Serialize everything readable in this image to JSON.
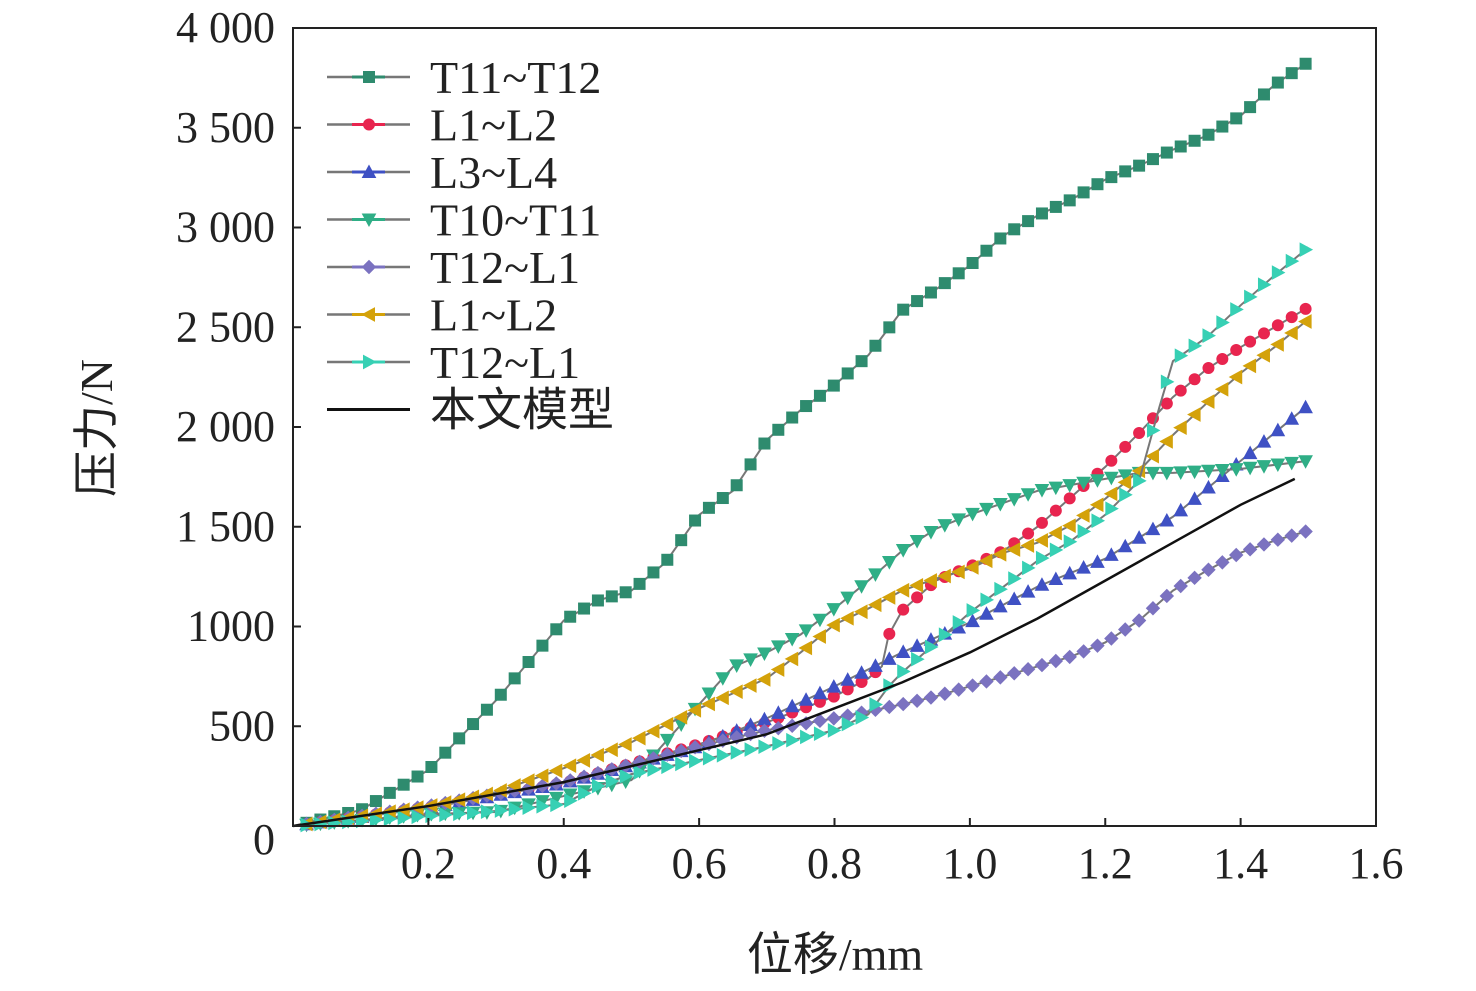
{
  "chart_data": {
    "type": "line",
    "title": "",
    "xlabel": "位移/mm",
    "ylabel": "压力/N",
    "xlim": [
      0,
      1.6
    ],
    "ylim": [
      0,
      4000
    ],
    "xticks": [
      {
        "v": 0.2,
        "label": "0.2"
      },
      {
        "v": 0.4,
        "label": "0.4"
      },
      {
        "v": 0.6,
        "label": "0.6"
      },
      {
        "v": 0.8,
        "label": "0.8"
      },
      {
        "v": 1.0,
        "label": "1.0"
      },
      {
        "v": 1.2,
        "label": "1.2"
      },
      {
        "v": 1.4,
        "label": "1.4"
      },
      {
        "v": 1.6,
        "label": "1.6"
      }
    ],
    "yticks": [
      {
        "v": 0,
        "label": "0"
      },
      {
        "v": 500,
        "label": "500"
      },
      {
        "v": 1000,
        "label": "1000"
      },
      {
        "v": 1500,
        "label": "1 500"
      },
      {
        "v": 2000,
        "label": "2 000"
      },
      {
        "v": 2500,
        "label": "2 500"
      },
      {
        "v": 3000,
        "label": "3 000"
      },
      {
        "v": 3500,
        "label": "3 500"
      },
      {
        "v": 4000,
        "label": "4 000"
      }
    ],
    "grid": false,
    "legend_position": "top-left",
    "series": [
      {
        "name": "T11~T12",
        "color": "#2e8b6e",
        "marker": "square",
        "x": [
          0,
          0.1,
          0.2,
          0.3,
          0.4,
          0.45,
          0.5,
          0.55,
          0.6,
          0.65,
          0.7,
          0.75,
          0.8,
          0.85,
          0.9,
          0.95,
          1.0,
          1.05,
          1.1,
          1.15,
          1.2,
          1.25,
          1.3,
          1.35,
          1.4,
          1.45,
          1.5
        ],
        "y": [
          0,
          80,
          280,
          630,
          1030,
          1130,
          1180,
          1320,
          1560,
          1680,
          1935,
          2085,
          2210,
          2360,
          2585,
          2690,
          2810,
          2960,
          3060,
          3140,
          3240,
          3310,
          3390,
          3460,
          3560,
          3715,
          3830
        ]
      },
      {
        "name": "L1~L2",
        "color": "#e8254f",
        "marker": "circle",
        "x": [
          0,
          0.2,
          0.4,
          0.6,
          0.7,
          0.8,
          0.85,
          0.87,
          0.88,
          0.9,
          0.95,
          1.0,
          1.05,
          1.1,
          1.15,
          1.2,
          1.25,
          1.3,
          1.35,
          1.4,
          1.45,
          1.5
        ],
        "y": [
          0,
          95,
          215,
          410,
          520,
          650,
          740,
          800,
          957,
          1080,
          1230,
          1300,
          1380,
          1500,
          1650,
          1800,
          1970,
          2150,
          2290,
          2400,
          2500,
          2600
        ]
      },
      {
        "name": "L3~L4",
        "color": "#3f51c4",
        "marker": "triangle-up",
        "x": [
          0,
          0.2,
          0.4,
          0.6,
          0.7,
          0.8,
          0.9,
          1.0,
          1.1,
          1.2,
          1.3,
          1.4,
          1.5
        ],
        "y": [
          0,
          90,
          215,
          400,
          540,
          700,
          870,
          1020,
          1200,
          1340,
          1550,
          1830,
          2110
        ]
      },
      {
        "name": "T10~T11",
        "color": "#2fae86",
        "marker": "triangle-down",
        "x": [
          0,
          0.2,
          0.3,
          0.4,
          0.5,
          0.6,
          0.65,
          0.7,
          0.75,
          0.8,
          0.85,
          0.9,
          0.95,
          1.0,
          1.05,
          1.1,
          1.15,
          1.2,
          1.25,
          1.3,
          1.35,
          1.4,
          1.5
        ],
        "y": [
          0,
          60,
          70,
          150,
          230,
          610,
          797,
          870,
          960,
          1090,
          1230,
          1380,
          1490,
          1560,
          1620,
          1680,
          1710,
          1740,
          1770,
          1770,
          1780,
          1790,
          1830
        ]
      },
      {
        "name": "T12~L1",
        "color": "#7b72c0",
        "marker": "diamond",
        "x": [
          0,
          0.2,
          0.4,
          0.6,
          0.7,
          0.8,
          0.9,
          0.95,
          1.0,
          1.05,
          1.1,
          1.15,
          1.2,
          1.25,
          1.3,
          1.35,
          1.4,
          1.45,
          1.5
        ],
        "y": [
          0,
          100,
          220,
          400,
          480,
          540,
          610,
          650,
          700,
          750,
          800,
          850,
          920,
          1030,
          1180,
          1280,
          1370,
          1430,
          1480
        ]
      },
      {
        "name": "L1~L2",
        "color": "#d4a20a",
        "marker": "triangle-left",
        "x": [
          0,
          0.2,
          0.3,
          0.4,
          0.5,
          0.6,
          0.7,
          0.75,
          0.8,
          0.85,
          0.9,
          0.95,
          1.0,
          1.05,
          1.1,
          1.15,
          1.2,
          1.25,
          1.3,
          1.35,
          1.4,
          1.45,
          1.5
        ],
        "y": [
          0,
          100,
          170,
          290,
          420,
          590,
          740,
          870,
          1010,
          1090,
          1180,
          1240,
          1290,
          1370,
          1420,
          1510,
          1640,
          1780,
          1960,
          2120,
          2270,
          2400,
          2540
        ]
      },
      {
        "name": "T12~L1",
        "color": "#37d0b4",
        "marker": "triangle-right",
        "x": [
          0,
          0.2,
          0.3,
          0.4,
          0.45,
          0.5,
          0.6,
          0.7,
          0.8,
          0.85,
          0.88,
          0.9,
          0.95,
          1.0,
          1.05,
          1.1,
          1.15,
          1.2,
          1.25,
          1.28,
          1.3,
          1.35,
          1.4,
          1.45,
          1.5
        ],
        "y": [
          0,
          50,
          75,
          110,
          200,
          260,
          330,
          400,
          480,
          560,
          700,
          770,
          920,
          1070,
          1200,
          1330,
          1430,
          1560,
          1730,
          2100,
          2330,
          2450,
          2610,
          2760,
          2900
        ]
      },
      {
        "name": "本文模型",
        "color": "#111111",
        "marker": "none",
        "x": [
          0,
          0.2,
          0.4,
          0.6,
          0.7,
          0.8,
          0.9,
          1.0,
          1.1,
          1.2,
          1.3,
          1.4,
          1.48
        ],
        "y": [
          0,
          100,
          220,
          380,
          460,
          590,
          720,
          870,
          1040,
          1230,
          1420,
          1610,
          1740
        ]
      }
    ]
  }
}
